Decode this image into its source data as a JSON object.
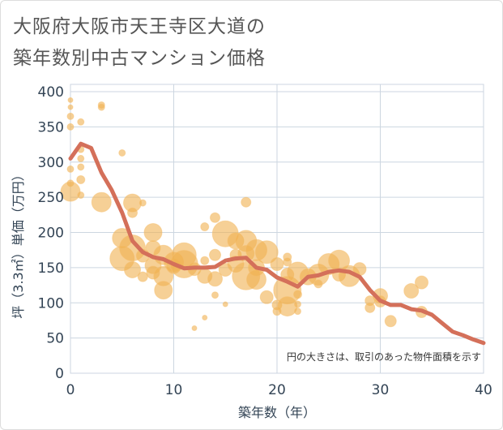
{
  "title_line1": "大阪府大阪市天王寺区大道の",
  "title_line2": "築年数別中古マンション価格",
  "chart_data": {
    "type": "scatter",
    "title": "大阪府大阪市天王寺区大道の築年数別中古マンション価格",
    "xlabel": "築年数（年）",
    "ylabel": "坪（3.3㎡）単価（万円）",
    "xlim": [
      0,
      40
    ],
    "ylim": [
      0,
      400
    ],
    "x_ticks": [
      0,
      10,
      20,
      30,
      40
    ],
    "y_ticks": [
      0,
      50,
      100,
      150,
      200,
      250,
      300,
      350,
      400
    ],
    "grid": true,
    "annotation": "円の大きさは、取引のあった物件面積を示す",
    "colors": {
      "bubble": "#f0b050",
      "line": "#d4705a",
      "grid": "#ccd6e0"
    },
    "bubbles": [
      {
        "x": 0,
        "y": 388,
        "s": 3
      },
      {
        "x": 0,
        "y": 378,
        "s": 3
      },
      {
        "x": 0,
        "y": 365,
        "s": 4
      },
      {
        "x": 0,
        "y": 350,
        "s": 4
      },
      {
        "x": 0,
        "y": 290,
        "s": 4
      },
      {
        "x": 0,
        "y": 270,
        "s": 4
      },
      {
        "x": 0,
        "y": 258,
        "s": 12
      },
      {
        "x": 1,
        "y": 357,
        "s": 4
      },
      {
        "x": 1,
        "y": 318,
        "s": 4
      },
      {
        "x": 1,
        "y": 305,
        "s": 4
      },
      {
        "x": 1,
        "y": 293,
        "s": 4
      },
      {
        "x": 1,
        "y": 275,
        "s": 5
      },
      {
        "x": 1,
        "y": 253,
        "s": 4
      },
      {
        "x": 3,
        "y": 381,
        "s": 4
      },
      {
        "x": 3,
        "y": 378,
        "s": 4
      },
      {
        "x": 3,
        "y": 243,
        "s": 12
      },
      {
        "x": 5,
        "y": 313,
        "s": 4
      },
      {
        "x": 5,
        "y": 192,
        "s": 12
      },
      {
        "x": 5,
        "y": 163,
        "s": 15
      },
      {
        "x": 6,
        "y": 242,
        "s": 11
      },
      {
        "x": 6,
        "y": 228,
        "s": 6
      },
      {
        "x": 6,
        "y": 178,
        "s": 16
      },
      {
        "x": 6,
        "y": 147,
        "s": 10
      },
      {
        "x": 7,
        "y": 242,
        "s": 4
      },
      {
        "x": 7,
        "y": 167,
        "s": 8
      },
      {
        "x": 7,
        "y": 137,
        "s": 6
      },
      {
        "x": 8,
        "y": 200,
        "s": 11
      },
      {
        "x": 8,
        "y": 178,
        "s": 9
      },
      {
        "x": 8,
        "y": 153,
        "s": 10
      },
      {
        "x": 8,
        "y": 143,
        "s": 8
      },
      {
        "x": 9,
        "y": 168,
        "s": 12
      },
      {
        "x": 9,
        "y": 138,
        "s": 12
      },
      {
        "x": 9,
        "y": 118,
        "s": 11
      },
      {
        "x": 10,
        "y": 158,
        "s": 12
      },
      {
        "x": 10,
        "y": 152,
        "s": 9
      },
      {
        "x": 11,
        "y": 168,
        "s": 15
      },
      {
        "x": 11,
        "y": 155,
        "s": 17
      },
      {
        "x": 12,
        "y": 64,
        "s": 3
      },
      {
        "x": 12,
        "y": 148,
        "s": 8
      },
      {
        "x": 13,
        "y": 208,
        "s": 5
      },
      {
        "x": 13,
        "y": 160,
        "s": 5
      },
      {
        "x": 13,
        "y": 138,
        "s": 9
      },
      {
        "x": 13,
        "y": 79,
        "s": 3
      },
      {
        "x": 14,
        "y": 221,
        "s": 6
      },
      {
        "x": 14,
        "y": 168,
        "s": 7
      },
      {
        "x": 14,
        "y": 134,
        "s": 9
      },
      {
        "x": 14,
        "y": 111,
        "s": 4
      },
      {
        "x": 15,
        "y": 198,
        "s": 16
      },
      {
        "x": 15,
        "y": 147,
        "s": 8
      },
      {
        "x": 15,
        "y": 98,
        "s": 3
      },
      {
        "x": 16,
        "y": 188,
        "s": 10
      },
      {
        "x": 16,
        "y": 168,
        "s": 7
      },
      {
        "x": 16,
        "y": 155,
        "s": 10
      },
      {
        "x": 17,
        "y": 243,
        "s": 6
      },
      {
        "x": 17,
        "y": 188,
        "s": 13
      },
      {
        "x": 17,
        "y": 170,
        "s": 10
      },
      {
        "x": 17,
        "y": 138,
        "s": 17
      },
      {
        "x": 18,
        "y": 175,
        "s": 13
      },
      {
        "x": 18,
        "y": 150,
        "s": 10
      },
      {
        "x": 18,
        "y": 133,
        "s": 12
      },
      {
        "x": 19,
        "y": 172,
        "s": 14
      },
      {
        "x": 19,
        "y": 108,
        "s": 8
      },
      {
        "x": 20,
        "y": 155,
        "s": 8
      },
      {
        "x": 20,
        "y": 97,
        "s": 6
      },
      {
        "x": 20,
        "y": 88,
        "s": 5
      },
      {
        "x": 21,
        "y": 165,
        "s": 5
      },
      {
        "x": 21,
        "y": 158,
        "s": 5
      },
      {
        "x": 21,
        "y": 140,
        "s": 8
      },
      {
        "x": 21,
        "y": 118,
        "s": 17
      },
      {
        "x": 21,
        "y": 95,
        "s": 12
      },
      {
        "x": 22,
        "y": 143,
        "s": 13
      },
      {
        "x": 22,
        "y": 112,
        "s": 5
      },
      {
        "x": 22,
        "y": 98,
        "s": 4
      },
      {
        "x": 22,
        "y": 88,
        "s": 4
      },
      {
        "x": 23,
        "y": 137,
        "s": 10
      },
      {
        "x": 24,
        "y": 140,
        "s": 13
      },
      {
        "x": 24,
        "y": 127,
        "s": 5
      },
      {
        "x": 25,
        "y": 155,
        "s": 13
      },
      {
        "x": 26,
        "y": 160,
        "s": 13
      },
      {
        "x": 26,
        "y": 140,
        "s": 8
      },
      {
        "x": 27,
        "y": 138,
        "s": 13
      },
      {
        "x": 28,
        "y": 148,
        "s": 8
      },
      {
        "x": 29,
        "y": 103,
        "s": 6
      },
      {
        "x": 29,
        "y": 93,
        "s": 6
      },
      {
        "x": 30,
        "y": 110,
        "s": 9
      },
      {
        "x": 30,
        "y": 102,
        "s": 7
      },
      {
        "x": 31,
        "y": 74,
        "s": 7
      },
      {
        "x": 33,
        "y": 117,
        "s": 9
      },
      {
        "x": 34,
        "y": 129,
        "s": 8
      },
      {
        "x": 34,
        "y": 87,
        "s": 7
      }
    ],
    "line": {
      "x": [
        0,
        1,
        2,
        3,
        4,
        5,
        6,
        7,
        8,
        9,
        10,
        11,
        12,
        13,
        14,
        15,
        16,
        17,
        18,
        19,
        20,
        21,
        22,
        23,
        24,
        25,
        26,
        27,
        28,
        29,
        30,
        31,
        32,
        33,
        34,
        35,
        36,
        37,
        38,
        39,
        40
      ],
      "y": [
        305,
        326,
        320,
        285,
        260,
        228,
        188,
        172,
        165,
        162,
        155,
        149,
        150,
        150,
        151,
        160,
        163,
        164,
        150,
        147,
        136,
        130,
        123,
        137,
        139,
        144,
        146,
        144,
        137,
        118,
        103,
        97,
        97,
        91,
        89,
        83,
        71,
        59,
        54,
        48,
        43
      ]
    }
  }
}
